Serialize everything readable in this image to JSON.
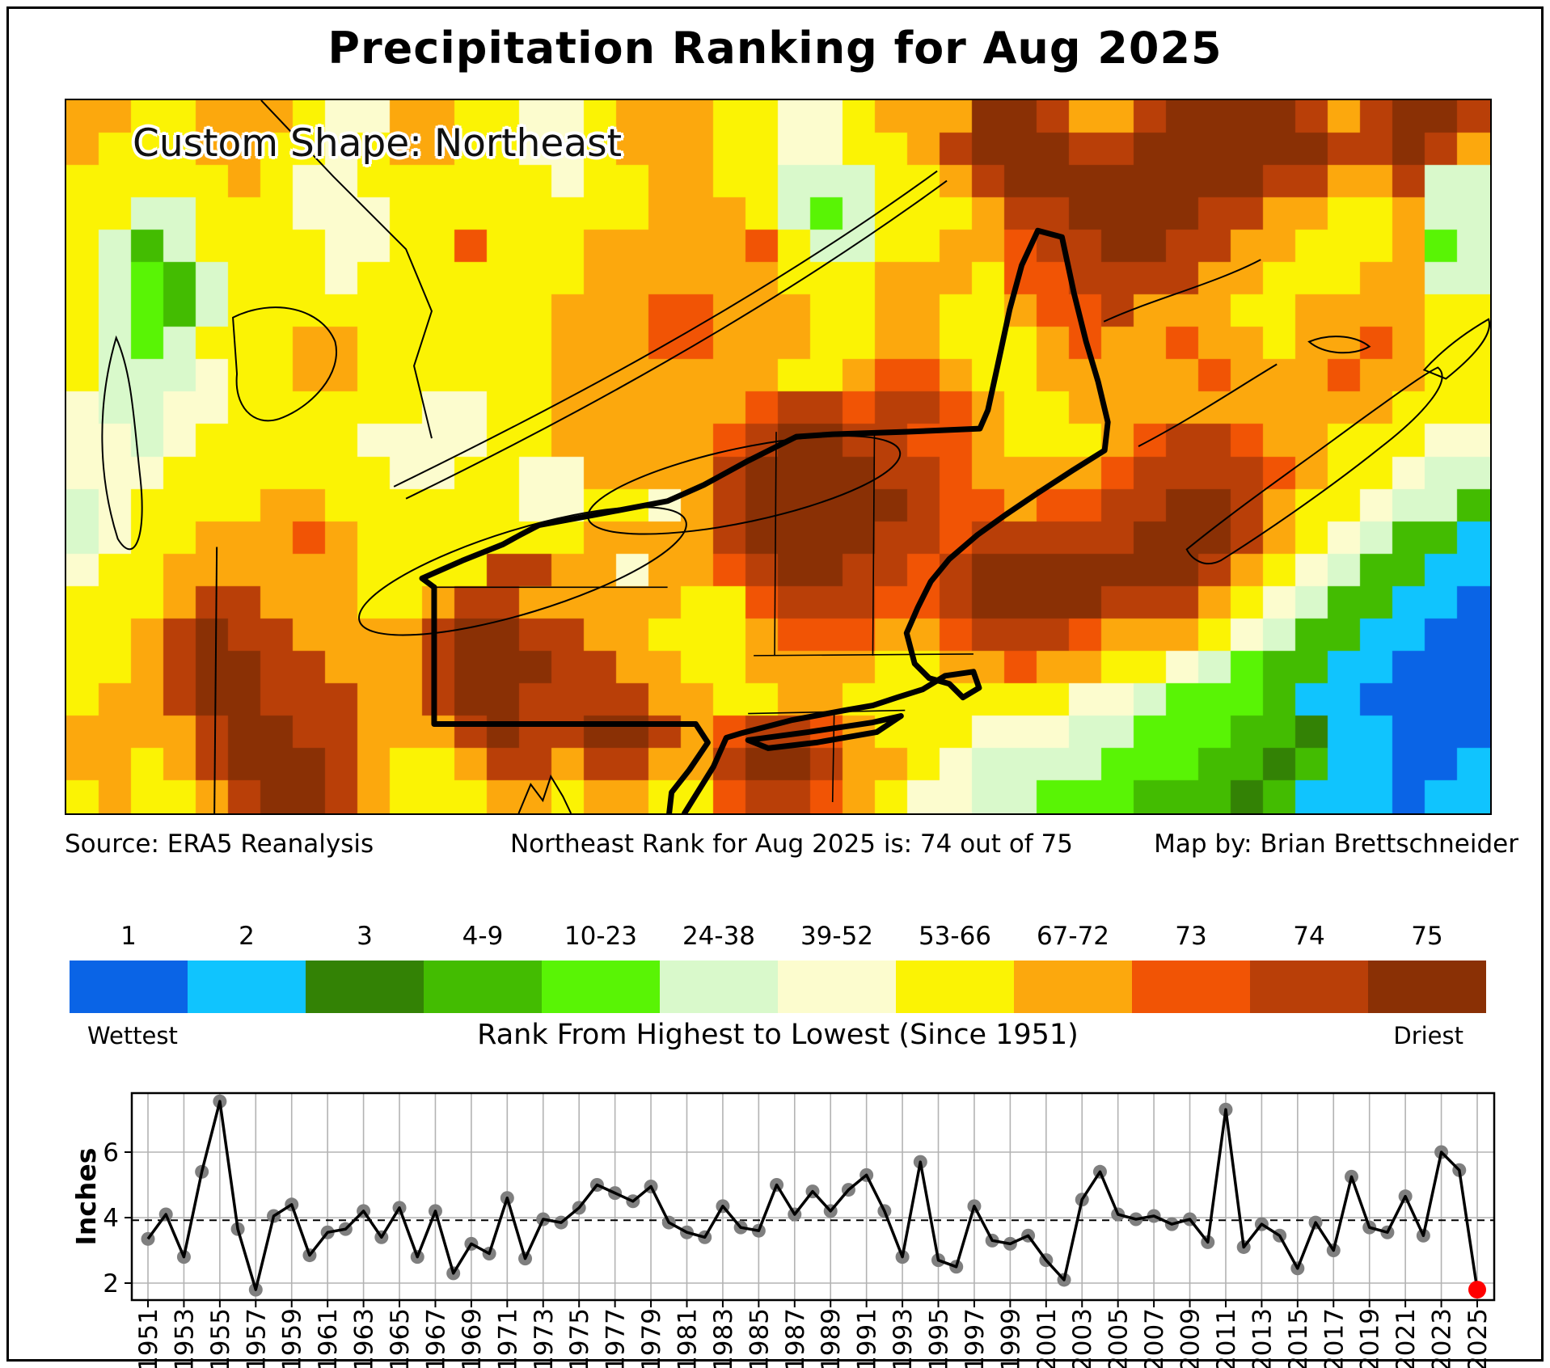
{
  "page": {
    "title": "Precipitation Ranking for Aug 2025"
  },
  "map": {
    "label": "Custom Shape: Northeast",
    "captions": {
      "source": "Source: ERA5 Reanalysis",
      "rank": "Northeast Rank for Aug 2025 is: 74 out of 75",
      "credit": "Map by: Brian Brettschneider"
    },
    "palette": {
      "0": "#FBF304",
      "1": "#FCA80D",
      "2": "#F15405",
      "3": "#B93F08",
      "4": "#8A3005",
      "5": "#FCFCCE",
      "6": "#D9F9CB",
      "7": "#59F405",
      "8": "#43BC01",
      "9": "#338205",
      "a": "#10C4FE",
      "b": "#0A64E6"
    },
    "grid_cols": 44,
    "grid_rows": [
      "11001110551100550111005501114431134444313443",
      "10001100501100550111005500134443344444433431",
      "00000105500000050011006660013444444443311366",
      "00660005550000000011106760001334444331100166",
      "06860000550020001111120660011233443311000176",
      "06786000500000001111110001110223333110001166",
      "06786000000000011122111001100122311100111100",
      "06760001100000011122111001100012112110112100",
      "06665001100000011111110012210011111211121100",
      "56655000000550011111123323321001111111111000",
      "55650000055550011111234433221000123321100055",
      "55500000005500551111344443321111233332100566",
      "65000011000000550051344444322122334431005668",
      "6500111210000000111134444332333334443105688a",
      "500111111000033115112344332344444443105688aa",
      "0001331110013311111002333223444433310568 8aab",
      "0013433111134433110001222112333211105688aabb",
      "00134433111344433110011110011211005678 8aabbb",
      "011344333113443333110011000000055677 78aabbbb",
      "11113443311134334431233210005556677788 9aabbb",
      "110134443100133133113443110566667778898aabba",
      "01001344310001101100233210556677788898aaabaa"
    ],
    "overlay": {
      "outline_color": "#000000",
      "thin_line_color": "#000000"
    }
  },
  "legend": {
    "categories": [
      {
        "label": "1",
        "color": "#0A64E6"
      },
      {
        "label": "2",
        "color": "#10C4FE"
      },
      {
        "label": "3",
        "color": "#338205"
      },
      {
        "label": "4-9",
        "color": "#43BC01"
      },
      {
        "label": "10-23",
        "color": "#59F405"
      },
      {
        "label": "24-38",
        "color": "#D9F9CB"
      },
      {
        "label": "39-52",
        "color": "#FCFCCE"
      },
      {
        "label": "53-66",
        "color": "#FBF304"
      },
      {
        "label": "67-72",
        "color": "#FCA80D"
      },
      {
        "label": "73",
        "color": "#F15405"
      },
      {
        "label": "74",
        "color": "#B93F08"
      },
      {
        "label": "75",
        "color": "#8A3005"
      }
    ],
    "wettest": "Wettest",
    "driest": "Driest",
    "title": "Rank From Highest to Lowest (Since 1951)"
  },
  "chart_data": {
    "type": "line",
    "title": "",
    "xlabel": "",
    "ylabel": "Inches",
    "grid": true,
    "ylim": [
      1.48,
      7.78
    ],
    "y_ticks": [
      2,
      4,
      6
    ],
    "mean_line": 3.92,
    "mean_line_style": "dashed",
    "x_tick_years": [
      1951,
      1953,
      1955,
      1957,
      1959,
      1961,
      1963,
      1965,
      1967,
      1969,
      1971,
      1973,
      1975,
      1977,
      1979,
      1981,
      1983,
      1985,
      1987,
      1989,
      1991,
      1993,
      1995,
      1997,
      1999,
      2001,
      2003,
      2005,
      2007,
      2009,
      2011,
      2013,
      2015,
      2017,
      2019,
      2021,
      2023,
      2025
    ],
    "years": [
      1951,
      1952,
      1953,
      1954,
      1955,
      1956,
      1957,
      1958,
      1959,
      1960,
      1961,
      1962,
      1963,
      1964,
      1965,
      1966,
      1967,
      1968,
      1969,
      1970,
      1971,
      1972,
      1973,
      1974,
      1975,
      1976,
      1977,
      1978,
      1979,
      1980,
      1981,
      1982,
      1983,
      1984,
      1985,
      1986,
      1987,
      1988,
      1989,
      1990,
      1991,
      1992,
      1993,
      1994,
      1995,
      1996,
      1997,
      1998,
      1999,
      2000,
      2001,
      2002,
      2003,
      2004,
      2005,
      2006,
      2007,
      2008,
      2009,
      2010,
      2011,
      2012,
      2013,
      2014,
      2015,
      2016,
      2017,
      2018,
      2019,
      2020,
      2021,
      2022,
      2023,
      2024,
      2025
    ],
    "values": [
      3.35,
      4.1,
      2.8,
      5.4,
      7.55,
      3.65,
      1.8,
      4.05,
      4.4,
      2.85,
      3.55,
      3.65,
      4.2,
      3.4,
      4.3,
      2.8,
      4.2,
      2.3,
      3.2,
      2.9,
      4.6,
      2.75,
      3.95,
      3.85,
      4.3,
      5.0,
      4.75,
      4.5,
      4.95,
      3.85,
      3.55,
      3.4,
      4.35,
      3.7,
      3.6,
      5.0,
      4.1,
      4.8,
      4.2,
      4.85,
      5.3,
      4.2,
      2.8,
      5.7,
      2.7,
      2.5,
      4.35,
      3.3,
      3.2,
      3.45,
      2.7,
      2.1,
      4.55,
      5.4,
      4.1,
      3.95,
      4.05,
      3.8,
      3.95,
      3.25,
      7.3,
      3.1,
      3.8,
      3.45,
      2.45,
      3.85,
      3.0,
      5.25,
      3.7,
      3.55,
      4.65,
      3.45,
      6.0,
      5.45,
      1.8
    ],
    "line_color": "#000000",
    "marker_color": "#7f7f7f",
    "highlight_last_color": "#ff0000",
    "legend_position": "none"
  }
}
